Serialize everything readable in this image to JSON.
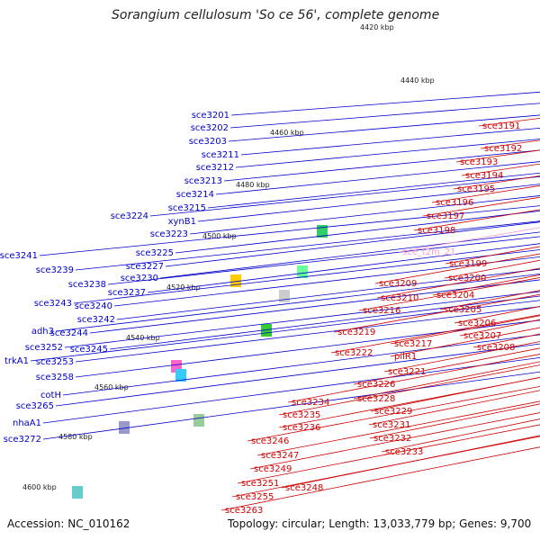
{
  "title": "Sorangium cellulosum 'So ce 56', complete genome",
  "accession": "Accession: NC_010162",
  "topology": "Topology: circular; Length: 13,033,779 bp; Genes: 9,700",
  "colors": {
    "backbone": "#8a8a8a",
    "forward_gene": "#ff0000",
    "reverse_gene": "#0000ff",
    "forward_label": "#cc0000",
    "reverse_label": "#0000cc",
    "rna_label": "#ff99cc",
    "ruler_dots": "#2e8b57"
  },
  "ruler": [
    "4420 kbp",
    "4440 kbp",
    "4460 kbp",
    "4480 kbp",
    "4500 kbp",
    "4520 kbp",
    "4540 kbp",
    "4560 kbp",
    "4580 kbp",
    "4600 kbp"
  ],
  "left_labels": [
    "sce3201",
    "sce3202",
    "sce3203",
    "sce3211",
    "sce3212",
    "sce3213",
    "sce3214",
    "sce3215",
    "xynB1",
    "sce3224",
    "sce3223",
    "sce3225",
    "sce3227",
    "sce3230",
    "sce3237",
    "sce3241",
    "sce3239",
    "sce3238",
    "sce3243",
    "sce3240",
    "sce3242",
    "adh3",
    "sce3244",
    "sce3245",
    "sce3252",
    "trkA1",
    "sce3253",
    "sce3258",
    "cotH",
    "sce3265",
    "nhaA1",
    "sce3272"
  ],
  "right_labels": [
    "sce3191",
    "sce3192",
    "sce3193",
    "sce3194",
    "sce3195",
    "sce3196",
    "sce3197",
    "sce3198",
    "sce_t2m_21",
    "sce3199",
    "sce3200",
    "sce3209",
    "sce3204",
    "sce3210",
    "sce3205",
    "sce3216",
    "sce3206",
    "sce3207",
    "sce3219",
    "sce3208",
    "sce3217",
    "pilR1",
    "sce3222",
    "sce3221",
    "sce3226",
    "sce3228",
    "sce3234",
    "sce3229",
    "sce3235",
    "sce3231",
    "sce3236",
    "sce3232",
    "sce3233",
    "sce3246",
    "sce3247",
    "sce3249",
    "sce3248",
    "sce3251",
    "sce3255",
    "sce3263"
  ]
}
